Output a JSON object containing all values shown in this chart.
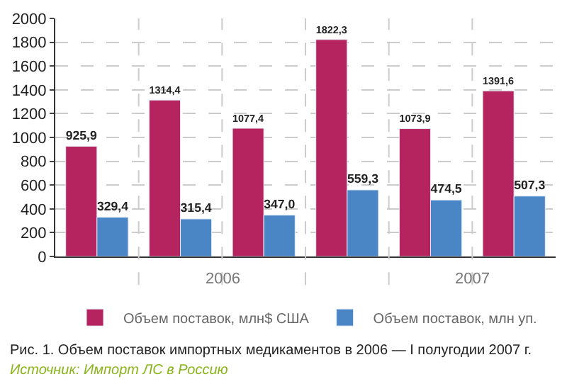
{
  "chart_data": {
    "type": "bar",
    "title": "Рис. 1. Объем поставок импортных медикаментов в 2006 — I полугодии 2007 г.",
    "categories": [
      null,
      null,
      null,
      null,
      null,
      null
    ],
    "series": [
      {
        "name": "Объем поставок, млн$ США",
        "color": "#b5245f",
        "values": [
          925.9,
          1314.4,
          1077.4,
          1822.3,
          1073.9,
          1391.6
        ],
        "value_labels": [
          "925,9",
          "1314,4",
          "1077,4",
          "1822,3",
          "1073,9",
          "1391,6"
        ]
      },
      {
        "name": "Объем поставок, млн уп.",
        "color": "#4a86c5",
        "values": [
          329.4,
          315.4,
          347.0,
          559.3,
          474.5,
          507.3
        ],
        "value_labels": [
          "329,4",
          "315,4",
          "347,0",
          "559,3",
          "474,5",
          "507,3"
        ]
      }
    ],
    "ylim": [
      0,
      2000
    ],
    "yticks": [
      0,
      200,
      400,
      600,
      800,
      1000,
      1200,
      1400,
      1600,
      1800,
      2000
    ],
    "grid": true,
    "legend": "bottom",
    "annotations": [
      "2006",
      "2007",
      "Источник: Импорт ЛС в Россию"
    ]
  }
}
